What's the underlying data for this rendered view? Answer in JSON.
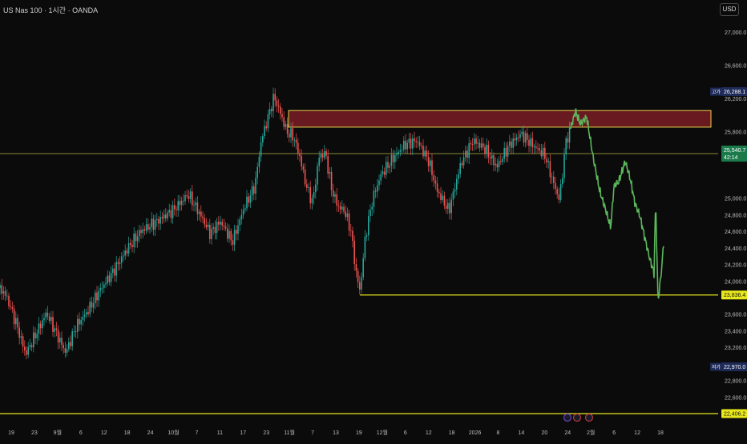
{
  "header": {
    "title": "US Nas 100 · 1시간 · OANDA",
    "currency": "USD"
  },
  "colors": {
    "background": "#0b0b0b",
    "up_candle": "#26a69a",
    "down_candle": "#ef5350",
    "forecast": "#5cb85c",
    "support_line": "#e8e81e",
    "zone_fill": "#7a1c24",
    "zone_border": "#e8d24a",
    "price_line": "#8a8a3a",
    "high_label_bg": "#1e2a57",
    "current_label_bg": "#1a7a4a"
  },
  "chart_data": {
    "type": "line",
    "ylim": [
      22300,
      27200
    ],
    "y_ticks": [
      "27,000.0",
      "26,600.0",
      "26,200.0",
      "25,800.0",
      "25,000.0",
      "24,800.0",
      "24,600.0",
      "24,400.0",
      "24,200.0",
      "24,000.0",
      "23,600.0",
      "23,400.0",
      "23,200.0",
      "22,800.0",
      "22,600.0"
    ],
    "x_ticks": [
      "19",
      "23",
      "9월",
      "6",
      "12",
      "18",
      "24",
      "10월",
      "7",
      "11",
      "17",
      "23",
      "11월",
      "7",
      "13",
      "19",
      "12월",
      "6",
      "12",
      "18",
      "2026",
      "8",
      "14",
      "20",
      "24",
      "2월",
      "6",
      "12",
      "18"
    ],
    "price_series": [
      [
        0,
        23920
      ],
      [
        8,
        23820
      ],
      [
        20,
        23500
      ],
      [
        32,
        23120
      ],
      [
        44,
        23350
      ],
      [
        58,
        23620
      ],
      [
        70,
        23380
      ],
      [
        82,
        23140
      ],
      [
        95,
        23460
      ],
      [
        110,
        23650
      ],
      [
        125,
        23900
      ],
      [
        140,
        24100
      ],
      [
        158,
        24380
      ],
      [
        175,
        24600
      ],
      [
        195,
        24720
      ],
      [
        215,
        24850
      ],
      [
        235,
        25050
      ],
      [
        250,
        24800
      ],
      [
        262,
        24580
      ],
      [
        275,
        24720
      ],
      [
        290,
        24480
      ],
      [
        305,
        24900
      ],
      [
        318,
        25150
      ],
      [
        326,
        25700
      ],
      [
        335,
        26000
      ],
      [
        342,
        26230
      ],
      [
        350,
        26020
      ],
      [
        358,
        25800
      ],
      [
        366,
        25750
      ],
      [
        374,
        25500
      ],
      [
        382,
        25150
      ],
      [
        390,
        24950
      ],
      [
        398,
        25500
      ],
      [
        406,
        25550
      ],
      [
        414,
        25100
      ],
      [
        422,
        24900
      ],
      [
        430,
        24850
      ],
      [
        438,
        24600
      ],
      [
        444,
        24120
      ],
      [
        449,
        23880
      ],
      [
        456,
        24550
      ],
      [
        465,
        25000
      ],
      [
        475,
        25280
      ],
      [
        490,
        25480
      ],
      [
        505,
        25650
      ],
      [
        520,
        25700
      ],
      [
        535,
        25450
      ],
      [
        545,
        25100
      ],
      [
        560,
        24850
      ],
      [
        575,
        25420
      ],
      [
        590,
        25700
      ],
      [
        605,
        25600
      ],
      [
        620,
        25380
      ],
      [
        635,
        25640
      ],
      [
        650,
        25780
      ],
      [
        665,
        25640
      ],
      [
        680,
        25520
      ],
      [
        690,
        25200
      ],
      [
        698,
        24980
      ],
      [
        706,
        25680
      ],
      [
        712,
        25850
      ]
    ],
    "forecast_series": [
      [
        712,
        25850
      ],
      [
        718,
        26050
      ],
      [
        724,
        25900
      ],
      [
        732,
        25980
      ],
      [
        740,
        25500
      ],
      [
        748,
        25100
      ],
      [
        756,
        24850
      ],
      [
        762,
        24650
      ],
      [
        766,
        25150
      ],
      [
        772,
        25200
      ],
      [
        780,
        25450
      ],
      [
        786,
        25250
      ],
      [
        792,
        24950
      ],
      [
        798,
        24800
      ],
      [
        804,
        24550
      ],
      [
        810,
        24300
      ],
      [
        816,
        24100
      ],
      [
        818,
        24980
      ],
      [
        821,
        23750
      ],
      [
        826,
        24200
      ],
      [
        828,
        24480
      ]
    ],
    "levels": {
      "resistance_zone": [
        25860,
        26060
      ],
      "support": 23836.4,
      "lower_support": 22406.2,
      "current_price": 25540.7,
      "session_high": 26288.1,
      "session_low": 22970.0
    },
    "price_labels": {
      "high": "26,288.1",
      "high_tag": "고가",
      "current": "25,540.7",
      "countdown": "42:14",
      "support": "23,836.4",
      "low": "22,970.0",
      "low_tag": "저가",
      "lower_support": "22,406.2"
    }
  }
}
